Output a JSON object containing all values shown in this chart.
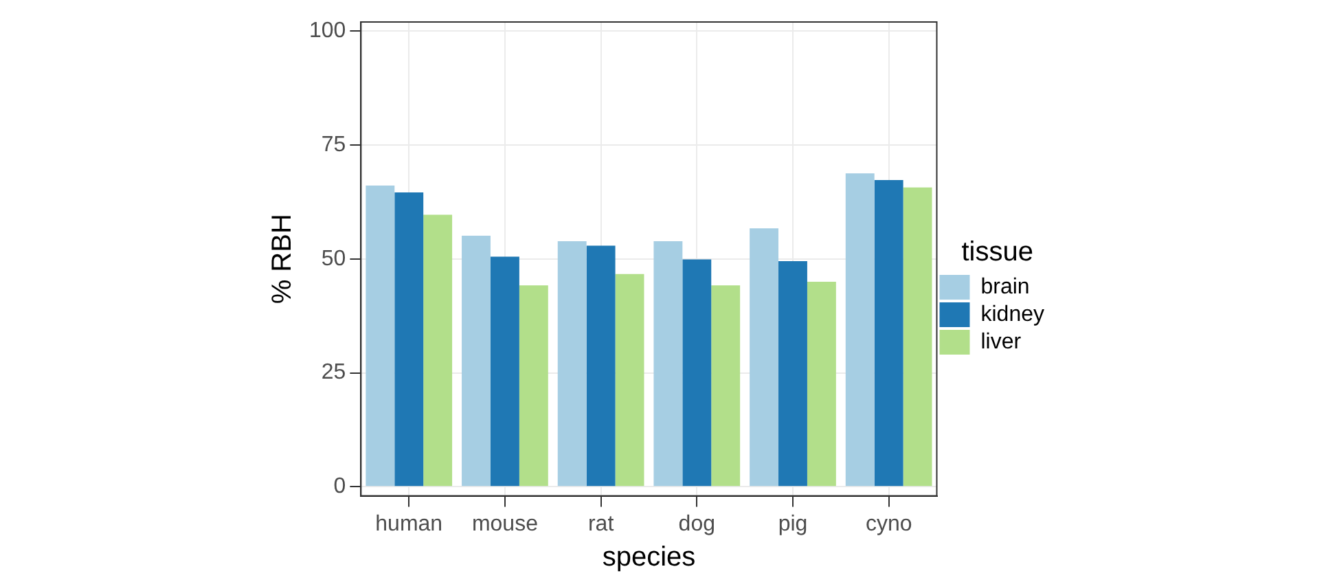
{
  "chart_data": {
    "type": "bar",
    "xlabel": "species",
    "ylabel": "% RBH",
    "legend_title": "tissue",
    "categories": [
      "human",
      "mouse",
      "rat",
      "dog",
      "pig",
      "cyno"
    ],
    "series": [
      {
        "name": "brain",
        "color": "#a6cee3",
        "values": [
          66.1,
          55.1,
          53.9,
          53.9,
          56.7,
          68.8
        ]
      },
      {
        "name": "kidney",
        "color": "#1f78b4",
        "values": [
          64.6,
          50.5,
          52.9,
          49.9,
          49.5,
          67.3
        ]
      },
      {
        "name": "liver",
        "color": "#b2df8a",
        "values": [
          59.7,
          44.2,
          46.7,
          44.2,
          45.0,
          65.7
        ]
      }
    ],
    "ylim": [
      -2,
      102
    ],
    "yticks": [
      0,
      25,
      50,
      75,
      100
    ],
    "grid": true,
    "legend": "right"
  }
}
